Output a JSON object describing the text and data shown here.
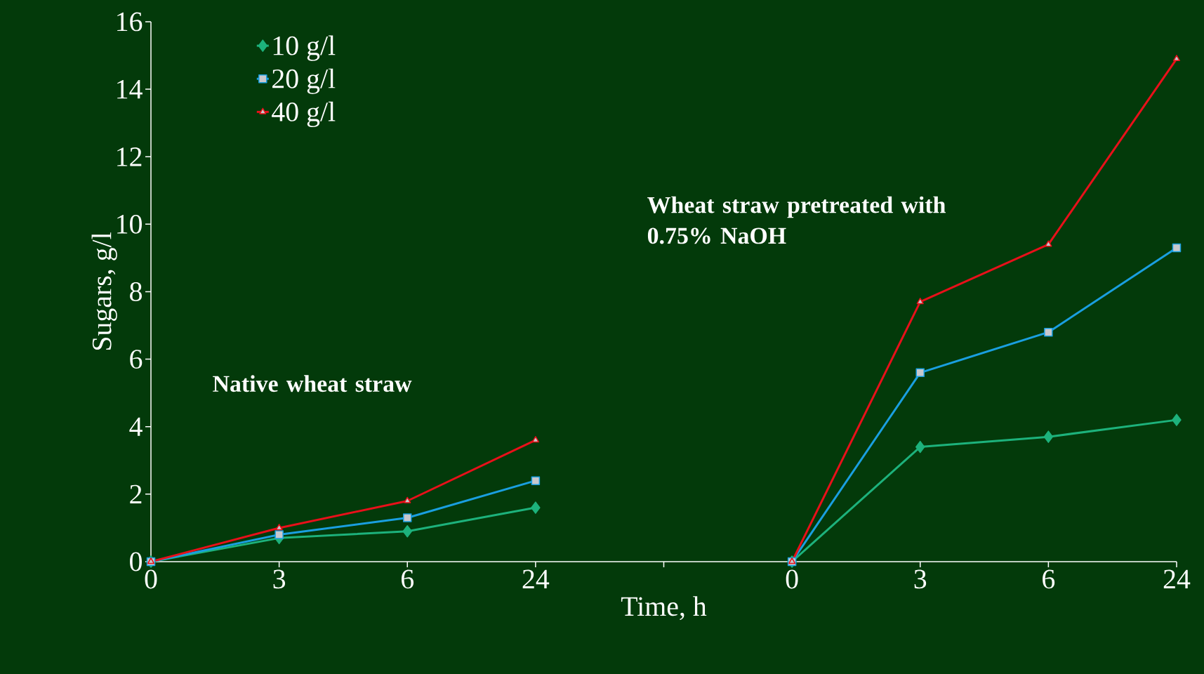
{
  "chart_data": {
    "type": "line",
    "xlabel": "Time, h",
    "ylabel": "Sugars, g/l",
    "categories": [
      "0",
      "3",
      "6",
      "24",
      null,
      "0",
      "3",
      "6",
      "24"
    ],
    "series": [
      {
        "name": "10 g/l",
        "color": "#1db27c",
        "marker": "diamond",
        "values": [
          0,
          0.7,
          0.9,
          1.6,
          null,
          0,
          3.4,
          3.7,
          4.2
        ]
      },
      {
        "name": "20 g/l",
        "color": "#1a9fe0",
        "marker": "square",
        "values": [
          0,
          0.8,
          1.3,
          2.4,
          null,
          0,
          5.6,
          6.8,
          9.3
        ]
      },
      {
        "name": "40 g/l",
        "color": "#e8101a",
        "marker": "triangle",
        "values": [
          0,
          1.0,
          1.8,
          3.6,
          null,
          0,
          7.7,
          9.4,
          14.9
        ]
      }
    ],
    "ylim": [
      0,
      16
    ],
    "yticks": [
      0,
      2,
      4,
      6,
      8,
      10,
      12,
      14,
      16
    ],
    "legend": "top left",
    "grid": false,
    "annotations": [
      "Native wheat straw",
      "Wheat straw pretreated with 0.75% NaOH"
    ]
  }
}
